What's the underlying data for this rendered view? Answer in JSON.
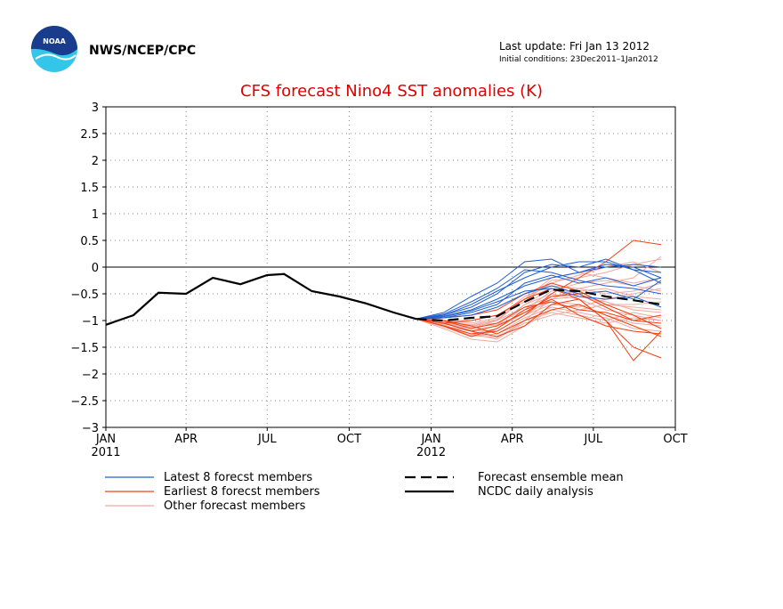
{
  "header": {
    "agency": "NWS/NCEP/CPC",
    "last_update": "Last update: Fri Jan 13 2012",
    "initial_conditions": "Initial conditions: 23Dec2011–1Jan2012",
    "logo_text": "NOAA",
    "logo_icon": "noaa-logo-icon"
  },
  "colors": {
    "title": "#e00000",
    "latest": "#1f5fd0",
    "earliest": "#f04010",
    "other": "#f0a8a0",
    "analysis": "#000000",
    "mean": "#000000",
    "grid": "#888888"
  },
  "chart_data": {
    "type": "line",
    "title": "CFS forecast Nino4 SST anomalies (K)",
    "xlabel": "",
    "ylabel": "",
    "x_range": [
      "2011-01",
      "2012-10"
    ],
    "ylim": [
      -3,
      3
    ],
    "yticks": [
      3,
      2.5,
      2,
      1.5,
      1,
      0.5,
      0,
      -0.5,
      -1,
      -1.5,
      -2,
      -2.5,
      -3
    ],
    "ytick_labels": [
      "3",
      "2.5",
      "2",
      "1.5",
      "1",
      "0.5",
      "0",
      "−0.5",
      "−1",
      "−1.5",
      "−2",
      "−2.5",
      "−3"
    ],
    "xticks": [
      {
        "date": "2011-01",
        "label": "JAN",
        "sublabel": "2011"
      },
      {
        "date": "2011-04",
        "label": "APR",
        "sublabel": ""
      },
      {
        "date": "2011-07",
        "label": "JUL",
        "sublabel": ""
      },
      {
        "date": "2011-10",
        "label": "OCT",
        "sublabel": ""
      },
      {
        "date": "2012-01",
        "label": "JAN",
        "sublabel": "2012"
      },
      {
        "date": "2012-04",
        "label": "APR",
        "sublabel": ""
      },
      {
        "date": "2012-07",
        "label": "JUL",
        "sublabel": ""
      },
      {
        "date": "2012-10",
        "label": "OCT",
        "sublabel": ""
      }
    ],
    "grid": true,
    "zero_line": true,
    "legend": {
      "placement": "bottom",
      "entries": [
        {
          "key": "latest",
          "label": "Latest 8 forecst members"
        },
        {
          "key": "earliest",
          "label": "Earliest 8 forecst members"
        },
        {
          "key": "other",
          "label": "Other forecast members"
        },
        {
          "key": "mean",
          "label": "Forecast ensemble mean"
        },
        {
          "key": "analysis",
          "label": "NCDC daily analysis"
        }
      ]
    },
    "forecast_x": [
      "2011-12-15",
      "2012-01-15",
      "2012-02-15",
      "2012-03-15",
      "2012-04-15",
      "2012-05-15",
      "2012-06-15",
      "2012-07-15",
      "2012-08-15",
      "2012-09-15"
    ],
    "series": [
      {
        "key": "analysis",
        "x": [
          "2011-01-01",
          "2011-02-01",
          "2011-03-01",
          "2011-04-01",
          "2011-05-01",
          "2011-06-01",
          "2011-07-01",
          "2011-07-20",
          "2011-08-20",
          "2011-09-20",
          "2011-10-20",
          "2011-11-20",
          "2011-12-15"
        ],
        "values": [
          -1.08,
          -0.9,
          -0.48,
          -0.5,
          -0.2,
          -0.32,
          -0.15,
          -0.13,
          -0.45,
          -0.55,
          -0.68,
          -0.85,
          -0.97
        ]
      },
      {
        "key": "mean",
        "values": [
          -0.97,
          -1.0,
          -0.95,
          -0.92,
          -0.65,
          -0.42,
          -0.45,
          -0.55,
          -0.62,
          -0.7
        ]
      }
    ],
    "latest_members": [
      [
        -0.97,
        -0.85,
        -0.55,
        -0.3,
        0.1,
        0.15,
        -0.1,
        0.05,
        0.0,
        -0.2
      ],
      [
        -0.97,
        -0.9,
        -0.7,
        -0.45,
        -0.2,
        0.0,
        0.1,
        0.1,
        -0.05,
        -0.1
      ],
      [
        -0.97,
        -0.92,
        -0.8,
        -0.6,
        -0.35,
        -0.2,
        -0.1,
        0.0,
        0.05,
        0.0
      ],
      [
        -0.97,
        -0.95,
        -0.85,
        -0.7,
        -0.3,
        -0.15,
        -0.3,
        -0.2,
        -0.35,
        -0.2
      ],
      [
        -0.97,
        -0.9,
        -0.75,
        -0.5,
        -0.1,
        0.05,
        0.0,
        0.15,
        -0.05,
        -0.3
      ],
      [
        -0.97,
        -0.95,
        -0.9,
        -0.75,
        -0.5,
        -0.35,
        -0.5,
        -0.45,
        -0.6,
        -0.25
      ],
      [
        -0.97,
        -0.88,
        -0.65,
        -0.4,
        -0.05,
        -0.1,
        -0.25,
        -0.35,
        -0.4,
        -0.5
      ],
      [
        -0.97,
        -0.93,
        -0.82,
        -0.65,
        -0.45,
        -0.4,
        -0.55,
        -0.6,
        -0.55,
        -0.75
      ]
    ],
    "earliest_members": [
      [
        -0.97,
        -1.05,
        -1.2,
        -1.3,
        -1.1,
        -0.7,
        -0.6,
        -1.0,
        -1.5,
        -1.7
      ],
      [
        -0.97,
        -1.1,
        -1.25,
        -1.2,
        -0.9,
        -0.5,
        -0.2,
        0.1,
        0.5,
        0.42
      ],
      [
        -0.97,
        -1.0,
        -1.1,
        -1.25,
        -1.0,
        -0.8,
        -0.7,
        -0.9,
        -1.1,
        -1.3
      ],
      [
        -0.97,
        -1.05,
        -1.0,
        -0.9,
        -0.6,
        -0.4,
        -0.6,
        -1.0,
        -1.75,
        -1.2
      ],
      [
        -0.97,
        -1.1,
        -1.3,
        -1.15,
        -0.8,
        -0.6,
        -0.9,
        -1.1,
        -1.2,
        -1.25
      ],
      [
        -0.97,
        -0.95,
        -0.9,
        -0.8,
        -0.5,
        -0.3,
        -0.45,
        -0.7,
        -0.9,
        -1.15
      ],
      [
        -0.97,
        -1.0,
        -1.15,
        -1.05,
        -0.75,
        -0.65,
        -0.8,
        -0.85,
        -1.0,
        -1.05
      ],
      [
        -0.97,
        -1.05,
        -1.2,
        -1.1,
        -0.85,
        -0.55,
        -0.5,
        -0.75,
        -1.0,
        -0.9
      ]
    ],
    "other_members": [
      [
        -0.97,
        -1.1,
        -1.25,
        -1.35,
        -1.0,
        -0.6,
        -0.4,
        -0.3,
        -0.2,
        0.2
      ],
      [
        -0.97,
        -1.05,
        -1.2,
        -1.1,
        -0.7,
        -0.5,
        -0.6,
        -0.8,
        -0.9,
        -1.0
      ],
      [
        -0.97,
        -1.1,
        -1.3,
        -1.2,
        -0.9,
        -0.7,
        -0.75,
        -0.6,
        -0.5,
        -0.4
      ],
      [
        -0.97,
        -1.0,
        -1.1,
        -1.0,
        -0.6,
        -0.3,
        -0.15,
        0.0,
        0.1,
        -0.1
      ],
      [
        -0.97,
        -1.15,
        -1.35,
        -1.4,
        -1.1,
        -0.8,
        -0.9,
        -1.0,
        -0.85,
        -0.95
      ],
      [
        -0.97,
        -1.05,
        -1.15,
        -1.0,
        -0.75,
        -0.55,
        -0.45,
        -0.4,
        -0.55,
        -0.6
      ],
      [
        -0.97,
        -1.1,
        -1.2,
        -1.3,
        -1.05,
        -0.9,
        -0.8,
        -0.7,
        -0.75,
        -0.8
      ],
      [
        -0.97,
        -1.0,
        -1.05,
        -0.95,
        -0.55,
        -0.35,
        -0.4,
        -0.5,
        -0.45,
        -0.3
      ],
      [
        -0.97,
        -1.08,
        -1.25,
        -1.15,
        -0.85,
        -0.65,
        -0.7,
        -0.9,
        -1.05,
        -1.1
      ],
      [
        -0.97,
        -1.02,
        -1.1,
        -1.05,
        -0.8,
        -0.45,
        -0.3,
        -0.25,
        -0.35,
        -0.45
      ],
      [
        -0.97,
        -1.12,
        -1.3,
        -1.25,
        -0.95,
        -0.75,
        -0.85,
        -0.95,
        -1.15,
        -1.2
      ],
      [
        -0.97,
        -1.0,
        -1.0,
        -0.9,
        -0.65,
        -0.25,
        -0.2,
        -0.1,
        0.05,
        0.15
      ],
      [
        -0.97,
        -1.06,
        -1.18,
        -1.2,
        -0.9,
        -0.6,
        -0.55,
        -0.65,
        -0.8,
        -0.85
      ],
      [
        -0.97,
        -1.04,
        -1.12,
        -1.08,
        -0.7,
        -0.4,
        -0.5,
        -0.7,
        -0.7,
        -0.65
      ],
      [
        -0.97,
        -1.1,
        -1.28,
        -1.32,
        -1.0,
        -0.85,
        -0.95,
        -1.05,
        -0.95,
        -1.0
      ],
      [
        -0.97,
        -1.03,
        -1.08,
        -0.98,
        -0.6,
        -0.2,
        -0.1,
        -0.2,
        -0.3,
        -0.2
      ]
    ]
  }
}
